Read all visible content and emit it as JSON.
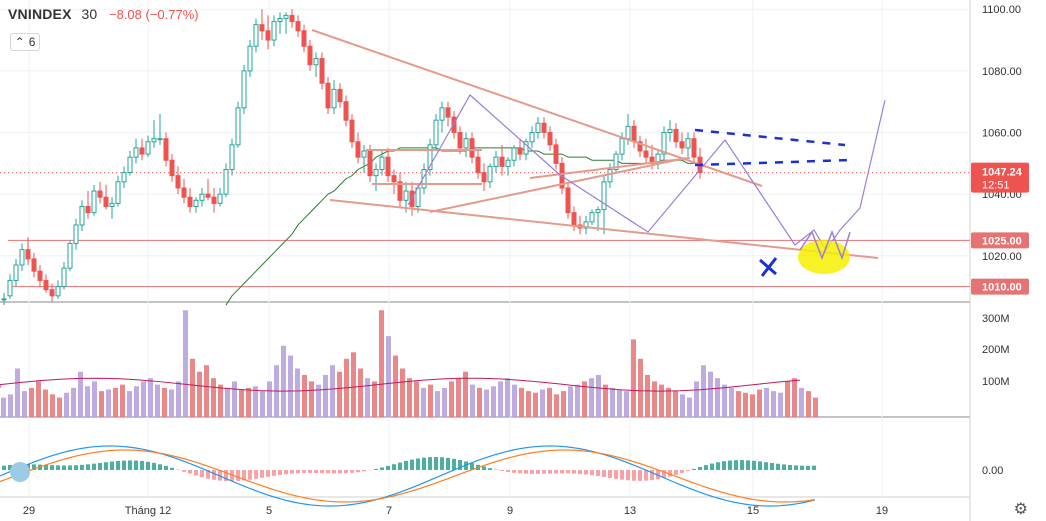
{
  "header": {
    "symbol": "VNINDEX",
    "interval": "30",
    "change": "−8.08 (−0.77%)",
    "indicator_count": "6"
  },
  "price_badge": {
    "value": "1047.24",
    "countdown": "12:51",
    "color": "#ef5350"
  },
  "colors": {
    "up": "#26a69a",
    "down": "#ef5350",
    "vol_up": "#b39ddb",
    "vol_down": "#e57373",
    "ma": "#2e7d32",
    "trend": "#e59b8c",
    "projection": "#9c7fd6",
    "hline": "#e57373",
    "macd": "#2196f3",
    "signal": "#ff7f1f",
    "hist_up": "#4caf9f",
    "hist_down": "#f8a1a6",
    "marker_blue": "#1a2fd6",
    "highlight": "#f4f000"
  },
  "icons": {
    "settings": "gear-icon",
    "eye": "eye-icon",
    "logo": "cloud-logo-icon"
  },
  "chart_data": {
    "type": "candlestick",
    "price_axis": {
      "min": 1005,
      "max": 1103,
      "ticks": [
        "1100.00",
        "1080.00",
        "1060.00",
        "1040.00",
        "1020.00"
      ]
    },
    "volume_axis": {
      "ticks": [
        "300M",
        "200M",
        "100M"
      ]
    },
    "macd_axis": {
      "ticks": [
        "0.00"
      ]
    },
    "x_ticks": [
      "29",
      "Tháng 12",
      "5",
      "7",
      "9",
      "13",
      "15",
      "19"
    ],
    "horizontal_levels": [
      {
        "label": "1025.00",
        "value": 1025
      },
      {
        "label": "1010.00",
        "value": 1010
      }
    ],
    "grid": true,
    "series": {
      "ohlc_x_start": 4,
      "ohlc_x_step": 6,
      "ohlc": [
        [
          1006,
          1008,
          1004,
          1006
        ],
        [
          1007,
          1014,
          1006,
          1012
        ],
        [
          1012,
          1019,
          1010,
          1017
        ],
        [
          1017,
          1024,
          1015,
          1022
        ],
        [
          1022,
          1026,
          1017,
          1019
        ],
        [
          1019,
          1021,
          1013,
          1015
        ],
        [
          1015,
          1017,
          1010,
          1012
        ],
        [
          1012,
          1014,
          1008,
          1009
        ],
        [
          1009,
          1011,
          1005,
          1007
        ],
        [
          1007,
          1012,
          1006,
          1010
        ],
        [
          1010,
          1018,
          1009,
          1016
        ],
        [
          1016,
          1025,
          1015,
          1024
        ],
        [
          1024,
          1032,
          1022,
          1030
        ],
        [
          1030,
          1038,
          1028,
          1036
        ],
        [
          1036,
          1041,
          1032,
          1034
        ],
        [
          1034,
          1043,
          1033,
          1041
        ],
        [
          1041,
          1044,
          1037,
          1039
        ],
        [
          1039,
          1043,
          1035,
          1036
        ],
        [
          1036,
          1039,
          1032,
          1037
        ],
        [
          1037,
          1046,
          1036,
          1044
        ],
        [
          1044,
          1049,
          1042,
          1047
        ],
        [
          1047,
          1054,
          1046,
          1052
        ],
        [
          1052,
          1058,
          1050,
          1055
        ],
        [
          1055,
          1058,
          1051,
          1053
        ],
        [
          1053,
          1059,
          1052,
          1057
        ],
        [
          1057,
          1064,
          1055,
          1058
        ],
        [
          1058,
          1066,
          1056,
          1058
        ],
        [
          1058,
          1060,
          1049,
          1051
        ],
        [
          1051,
          1053,
          1044,
          1046
        ],
        [
          1046,
          1049,
          1040,
          1042
        ],
        [
          1042,
          1045,
          1037,
          1039
        ],
        [
          1039,
          1042,
          1034,
          1036
        ],
        [
          1036,
          1039,
          1034,
          1038
        ],
        [
          1038,
          1042,
          1036,
          1040
        ],
        [
          1040,
          1045,
          1038,
          1039
        ],
        [
          1039,
          1042,
          1034,
          1037
        ],
        [
          1037,
          1042,
          1036,
          1040
        ],
        [
          1040,
          1050,
          1039,
          1048
        ],
        [
          1048,
          1058,
          1046,
          1056
        ],
        [
          1056,
          1070,
          1055,
          1068
        ],
        [
          1068,
          1082,
          1066,
          1080
        ],
        [
          1080,
          1090,
          1078,
          1088
        ],
        [
          1088,
          1097,
          1086,
          1095
        ],
        [
          1095,
          1100,
          1090,
          1093
        ],
        [
          1093,
          1098,
          1087,
          1090
        ],
        [
          1090,
          1098,
          1088,
          1096
        ],
        [
          1096,
          1099,
          1092,
          1097
        ],
        [
          1097,
          1099,
          1092,
          1098
        ],
        [
          1098,
          1100,
          1094,
          1096
        ],
        [
          1096,
          1098,
          1091,
          1093
        ],
        [
          1093,
          1095,
          1086,
          1088
        ],
        [
          1088,
          1090,
          1080,
          1082
        ],
        [
          1082,
          1086,
          1078,
          1084
        ],
        [
          1084,
          1086,
          1074,
          1076
        ],
        [
          1076,
          1078,
          1066,
          1068
        ],
        [
          1068,
          1077,
          1066,
          1074
        ],
        [
          1074,
          1076,
          1068,
          1070
        ],
        [
          1070,
          1072,
          1062,
          1064
        ],
        [
          1064,
          1066,
          1055,
          1057
        ],
        [
          1057,
          1060,
          1050,
          1052
        ],
        [
          1052,
          1056,
          1047,
          1054
        ],
        [
          1054,
          1056,
          1044,
          1046
        ],
        [
          1046,
          1050,
          1041,
          1048
        ],
        [
          1048,
          1054,
          1046,
          1052
        ],
        [
          1052,
          1055,
          1044,
          1046
        ],
        [
          1046,
          1048,
          1040,
          1044
        ],
        [
          1044,
          1047,
          1036,
          1038
        ],
        [
          1038,
          1044,
          1034,
          1041
        ],
        [
          1041,
          1044,
          1033,
          1036
        ],
        [
          1036,
          1043,
          1034,
          1042
        ],
        [
          1042,
          1050,
          1040,
          1048
        ],
        [
          1048,
          1058,
          1046,
          1056
        ],
        [
          1056,
          1066,
          1054,
          1064
        ],
        [
          1064,
          1070,
          1060,
          1068
        ],
        [
          1068,
          1070,
          1062,
          1065
        ],
        [
          1065,
          1067,
          1058,
          1060
        ],
        [
          1060,
          1062,
          1053,
          1055
        ],
        [
          1055,
          1060,
          1052,
          1058
        ],
        [
          1058,
          1060,
          1050,
          1052
        ],
        [
          1052,
          1054,
          1045,
          1047
        ],
        [
          1047,
          1050,
          1041,
          1044
        ],
        [
          1044,
          1050,
          1042,
          1049
        ],
        [
          1049,
          1054,
          1047,
          1052
        ],
        [
          1052,
          1056,
          1046,
          1049
        ],
        [
          1049,
          1052,
          1046,
          1051
        ],
        [
          1051,
          1056,
          1049,
          1055
        ],
        [
          1055,
          1058,
          1051,
          1053
        ],
        [
          1053,
          1058,
          1051,
          1057
        ],
        [
          1057,
          1062,
          1055,
          1060
        ],
        [
          1060,
          1065,
          1058,
          1063
        ],
        [
          1063,
          1065,
          1058,
          1060
        ],
        [
          1060,
          1062,
          1054,
          1056
        ],
        [
          1056,
          1058,
          1048,
          1050
        ],
        [
          1050,
          1052,
          1040,
          1042
        ],
        [
          1042,
          1044,
          1032,
          1034
        ],
        [
          1034,
          1036,
          1028,
          1030
        ],
        [
          1030,
          1033,
          1027,
          1029
        ],
        [
          1029,
          1033,
          1027,
          1031
        ],
        [
          1031,
          1035,
          1030,
          1034
        ],
        [
          1034,
          1036,
          1028,
          1035
        ],
        [
          1035,
          1046,
          1027,
          1044
        ],
        [
          1044,
          1050,
          1042,
          1048
        ],
        [
          1048,
          1054,
          1047,
          1053
        ],
        [
          1053,
          1060,
          1051,
          1058
        ],
        [
          1058,
          1066,
          1056,
          1062
        ],
        [
          1062,
          1064,
          1055,
          1057
        ],
        [
          1057,
          1059,
          1052,
          1054
        ],
        [
          1054,
          1058,
          1050,
          1052
        ],
        [
          1052,
          1056,
          1048,
          1050
        ],
        [
          1050,
          1054,
          1048,
          1053
        ],
        [
          1053,
          1062,
          1051,
          1060
        ],
        [
          1060,
          1064,
          1057,
          1061
        ],
        [
          1061,
          1063,
          1055,
          1057
        ],
        [
          1057,
          1060,
          1053,
          1055
        ],
        [
          1055,
          1060,
          1052,
          1058
        ],
        [
          1058,
          1060,
          1050,
          1052
        ],
        [
          1052,
          1055,
          1045,
          1047
        ]
      ],
      "ma": [
        1004,
        1007,
        1009,
        1011,
        1013,
        1015,
        1017,
        1019,
        1021,
        1023,
        1025,
        1027,
        1030,
        1032,
        1034,
        1036,
        1038,
        1040,
        1041,
        1043,
        1045,
        1046,
        1048,
        1049,
        1050,
        1052,
        1053,
        1054,
        1054,
        1055,
        1055,
        1055,
        1055,
        1055,
        1055,
        1055,
        1054,
        1054,
        1054,
        1054,
        1054,
        1055,
        1055,
        1055,
        1055,
        1055,
        1055,
        1055,
        1055,
        1055,
        1054,
        1054,
        1054,
        1053,
        1053,
        1053,
        1053,
        1052,
        1052,
        1052,
        1052,
        1051,
        1051,
        1051,
        1051,
        1051,
        1050,
        1050,
        1050,
        1050,
        1050,
        1050,
        1051,
        1051,
        1051,
        1051,
        1051,
        1050,
        1050,
        1050
      ],
      "volume": [
        60,
        70,
        150,
        80,
        90,
        110,
        85,
        70,
        60,
        75,
        90,
        140,
        95,
        110,
        80,
        85,
        90,
        100,
        80,
        95,
        110,
        120,
        100,
        90,
        85,
        110,
        330,
        180,
        140,
        160,
        120,
        100,
        90,
        110,
        85,
        90,
        95,
        80,
        110,
        160,
        220,
        190,
        150,
        130,
        110,
        100,
        130,
        160,
        140,
        180,
        200,
        150,
        120,
        110,
        330,
        250,
        190,
        150,
        120,
        110,
        90,
        100,
        80,
        90,
        110,
        120,
        140,
        100,
        90,
        85,
        95,
        110,
        120,
        100,
        90,
        80,
        75,
        85,
        90,
        70,
        80,
        95,
        100,
        110,
        120,
        130,
        100,
        90,
        85,
        80,
        240,
        180,
        130,
        110,
        100,
        90,
        80,
        70,
        60,
        110,
        160,
        140,
        120,
        100,
        90,
        80,
        75,
        70,
        85,
        90,
        80,
        75,
        110,
        120,
        90,
        80,
        60
      ]
    }
  }
}
